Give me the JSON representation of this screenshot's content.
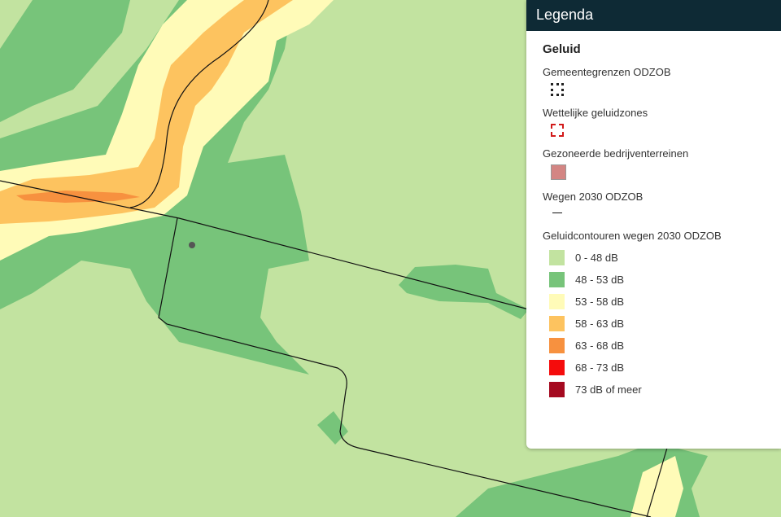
{
  "legend": {
    "title": "Legenda",
    "group": "Geluid",
    "layers": [
      {
        "name": "Gemeentegrenzen ODZOB"
      },
      {
        "name": "Wettelijke geluidzones"
      },
      {
        "name": "Gezoneerde bedrijventerreinen"
      },
      {
        "name": "Wegen 2030 ODZOB"
      }
    ],
    "contours": {
      "name": "Geluidcontouren wegen 2030 ODZOB",
      "classes": [
        {
          "label": "0 - 48 dB",
          "color": "#c2e3a0"
        },
        {
          "label": "48 - 53 dB",
          "color": "#77c47a"
        },
        {
          "label": "53 - 58 dB",
          "color": "#fffbb8"
        },
        {
          "label": "58 - 63 dB",
          "color": "#fdc35f"
        },
        {
          "label": "63 - 68 dB",
          "color": "#f7913f"
        },
        {
          "label": "68 - 73 dB",
          "color": "#f50c0c"
        },
        {
          "label": "73 dB of meer",
          "color": "#a50a20"
        }
      ]
    }
  }
}
